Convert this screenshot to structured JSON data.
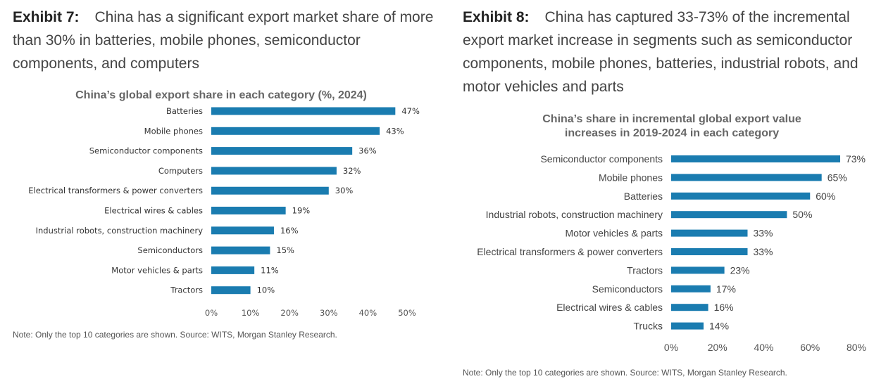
{
  "exhibit7": {
    "label": "Exhibit 7:",
    "heading": "China has a significant export market share of more than 30% in batteries, mobile phones, semiconductor components, and computers",
    "note": "Note: Only the top 10 categories are shown. Source: WITS, Morgan Stanley Research."
  },
  "exhibit8": {
    "label": "Exhibit 8:",
    "heading": "China has captured 33-73% of the incremental export market increase in segments such as semiconductor components, mobile phones, batteries, industrial robots, and motor vehicles and parts",
    "note": "Note: Only the top 10 categories are shown. Source: WITS, Morgan Stanley Research."
  },
  "chart_data": [
    {
      "type": "bar",
      "orientation": "horizontal",
      "title": "China’s global export share in each category (%, 2024)",
      "categories": [
        "Batteries",
        "Mobile phones",
        "Semiconductor components",
        "Computers",
        "Electrical transformers & power converters",
        "Electrical wires & cables",
        "Industrial robots, construction machinery",
        "Semiconductors",
        "Motor vehicles & parts",
        "Tractors"
      ],
      "values": [
        47,
        43,
        36,
        32,
        30,
        19,
        16,
        15,
        11,
        10
      ],
      "value_labels": [
        "47%",
        "43%",
        "36%",
        "32%",
        "30%",
        "19%",
        "16%",
        "15%",
        "11%",
        "10%"
      ],
      "xlim": [
        0,
        50
      ],
      "xticks": [
        0,
        10,
        20,
        30,
        40,
        50
      ],
      "xtick_labels": [
        "0%",
        "10%",
        "20%",
        "30%",
        "40%",
        "50%"
      ],
      "grid": false,
      "bar_color": "#1a7cb0"
    },
    {
      "type": "bar",
      "orientation": "horizontal",
      "title": "China’s share in incremental global export value increases in 2019-2024 in each category",
      "title_lines": [
        "China’s share in incremental global export value",
        "increases in 2019-2024 in each category"
      ],
      "categories": [
        "Semiconductor components",
        "Mobile phones",
        "Batteries",
        "Industrial robots, construction machinery",
        "Motor vehicles & parts",
        "Electrical transformers & power converters",
        "Tractors",
        "Semiconductors",
        "Electrical wires & cables",
        "Trucks"
      ],
      "values": [
        73,
        65,
        60,
        50,
        33,
        33,
        23,
        17,
        16,
        14
      ],
      "value_labels": [
        "73%",
        "65%",
        "60%",
        "50%",
        "33%",
        "33%",
        "23%",
        "17%",
        "16%",
        "14%"
      ],
      "xlim": [
        0,
        80
      ],
      "xticks": [
        0,
        20,
        40,
        60,
        80
      ],
      "xtick_labels": [
        "0%",
        "20%",
        "40%",
        "60%",
        "80%"
      ],
      "grid": false,
      "bar_color": "#1a7cb0"
    }
  ]
}
